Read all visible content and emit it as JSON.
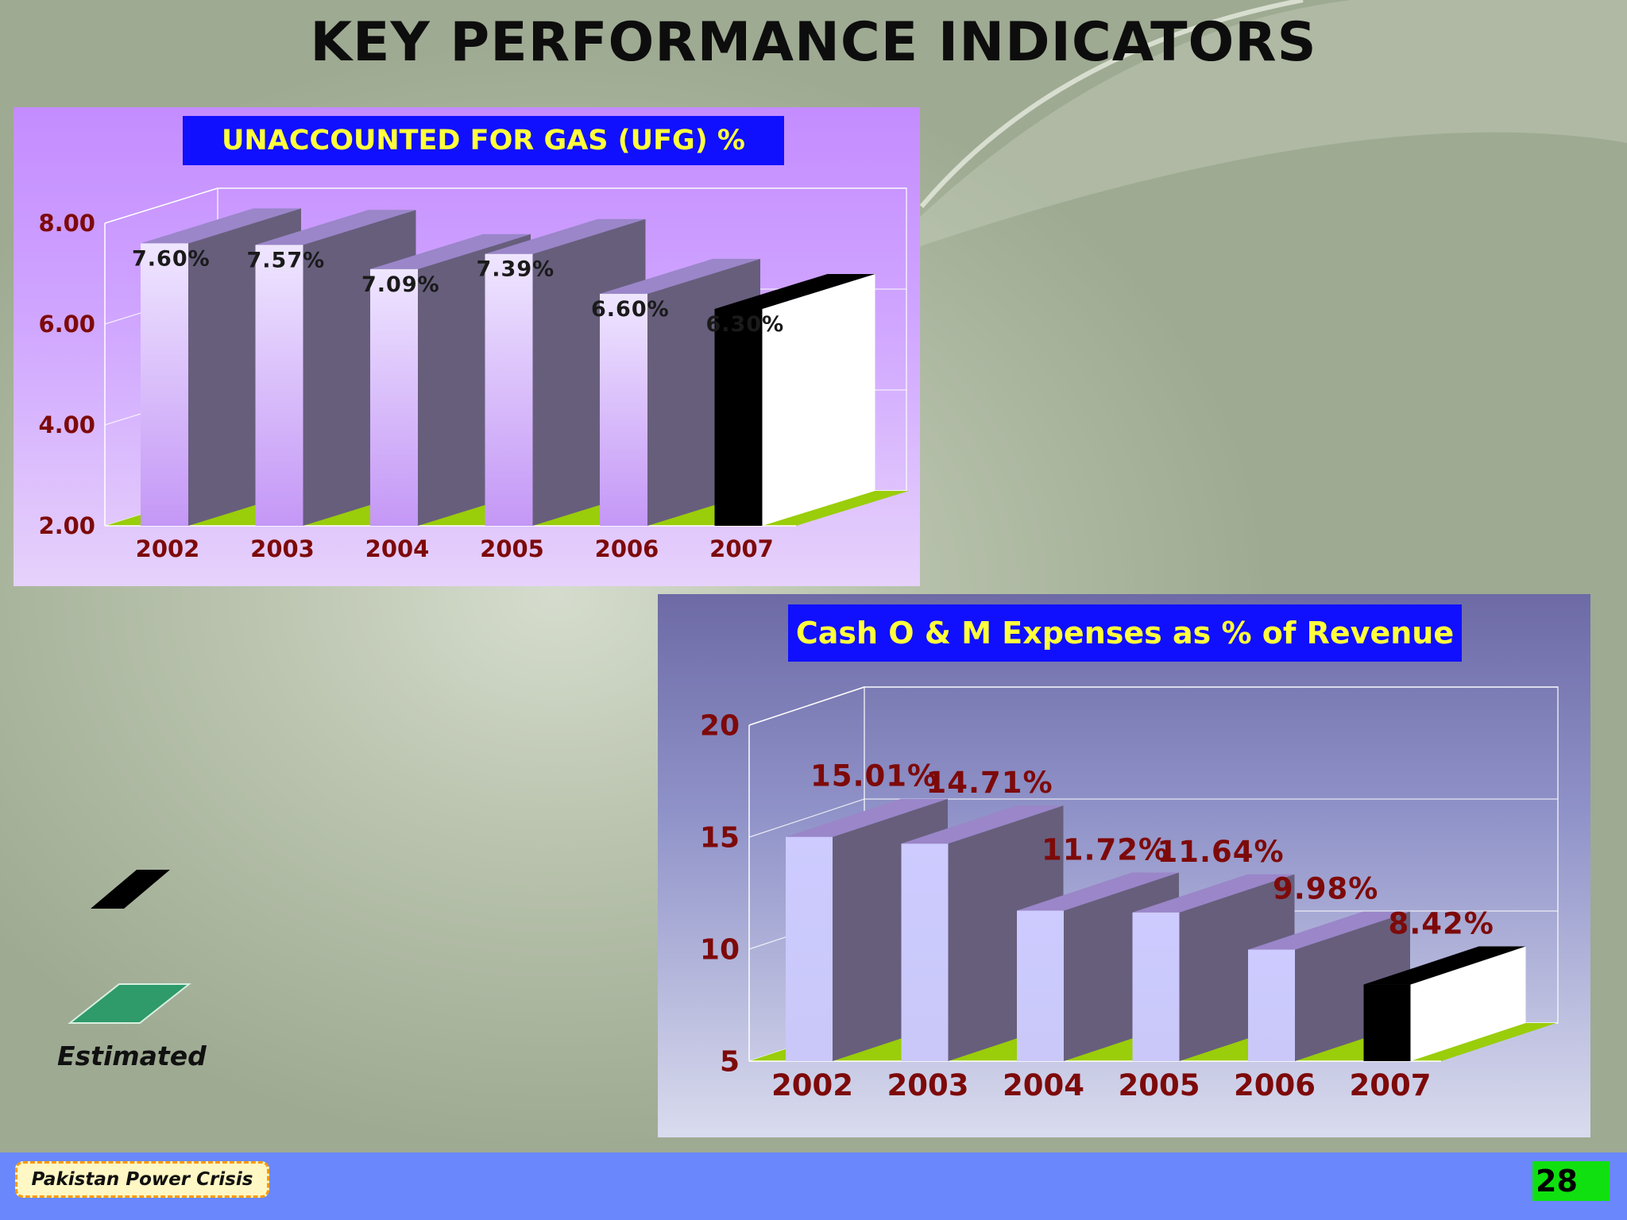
{
  "slide": {
    "title": "KEY PERFORMANCE INDICATORS",
    "footer_label": "Pakistan Power Crisis",
    "page_number": "28"
  },
  "legend": {
    "estimated_label": "Estimated"
  },
  "colors": {
    "front_face": "#e7dcff",
    "side_face": "#675e7c",
    "top_face": "#9a86c9",
    "estimated_front": "#000000",
    "estimated_side": "#ffffff",
    "floor": "#9acd0a",
    "value_label_om": "#7d0a0a",
    "axis_label": "#7d0a0a"
  },
  "chart_data": [
    {
      "type": "bar",
      "title": "UNACCOUNTED FOR GAS (UFG) %",
      "categories": [
        "2002",
        "2003",
        "2004",
        "2005",
        "2006",
        "2007"
      ],
      "values": [
        7.6,
        7.57,
        7.09,
        7.39,
        6.6,
        6.3
      ],
      "data_labels": [
        "7.60%",
        "7.57%",
        "7.09%",
        "7.39%",
        "6.60%",
        "6.30%"
      ],
      "ylim": [
        2,
        8
      ],
      "yticks": [
        "2.00",
        "4.00",
        "6.00",
        "8.00"
      ],
      "estimated_index": 5,
      "three_d": true
    },
    {
      "type": "bar",
      "title": "Cash O & M Expenses as % of Revenue",
      "categories": [
        "2002",
        "2003",
        "2004",
        "2005",
        "2006",
        "2007"
      ],
      "values": [
        15.01,
        14.71,
        11.72,
        11.64,
        9.98,
        8.42
      ],
      "data_labels": [
        "15.01%",
        "14.71%",
        "11.72%",
        "11.64%",
        "9.98%",
        "8.42%"
      ],
      "ylim": [
        5,
        20
      ],
      "yticks": [
        "5",
        "10",
        "15",
        "20"
      ],
      "estimated_index": 5,
      "three_d": true
    }
  ]
}
